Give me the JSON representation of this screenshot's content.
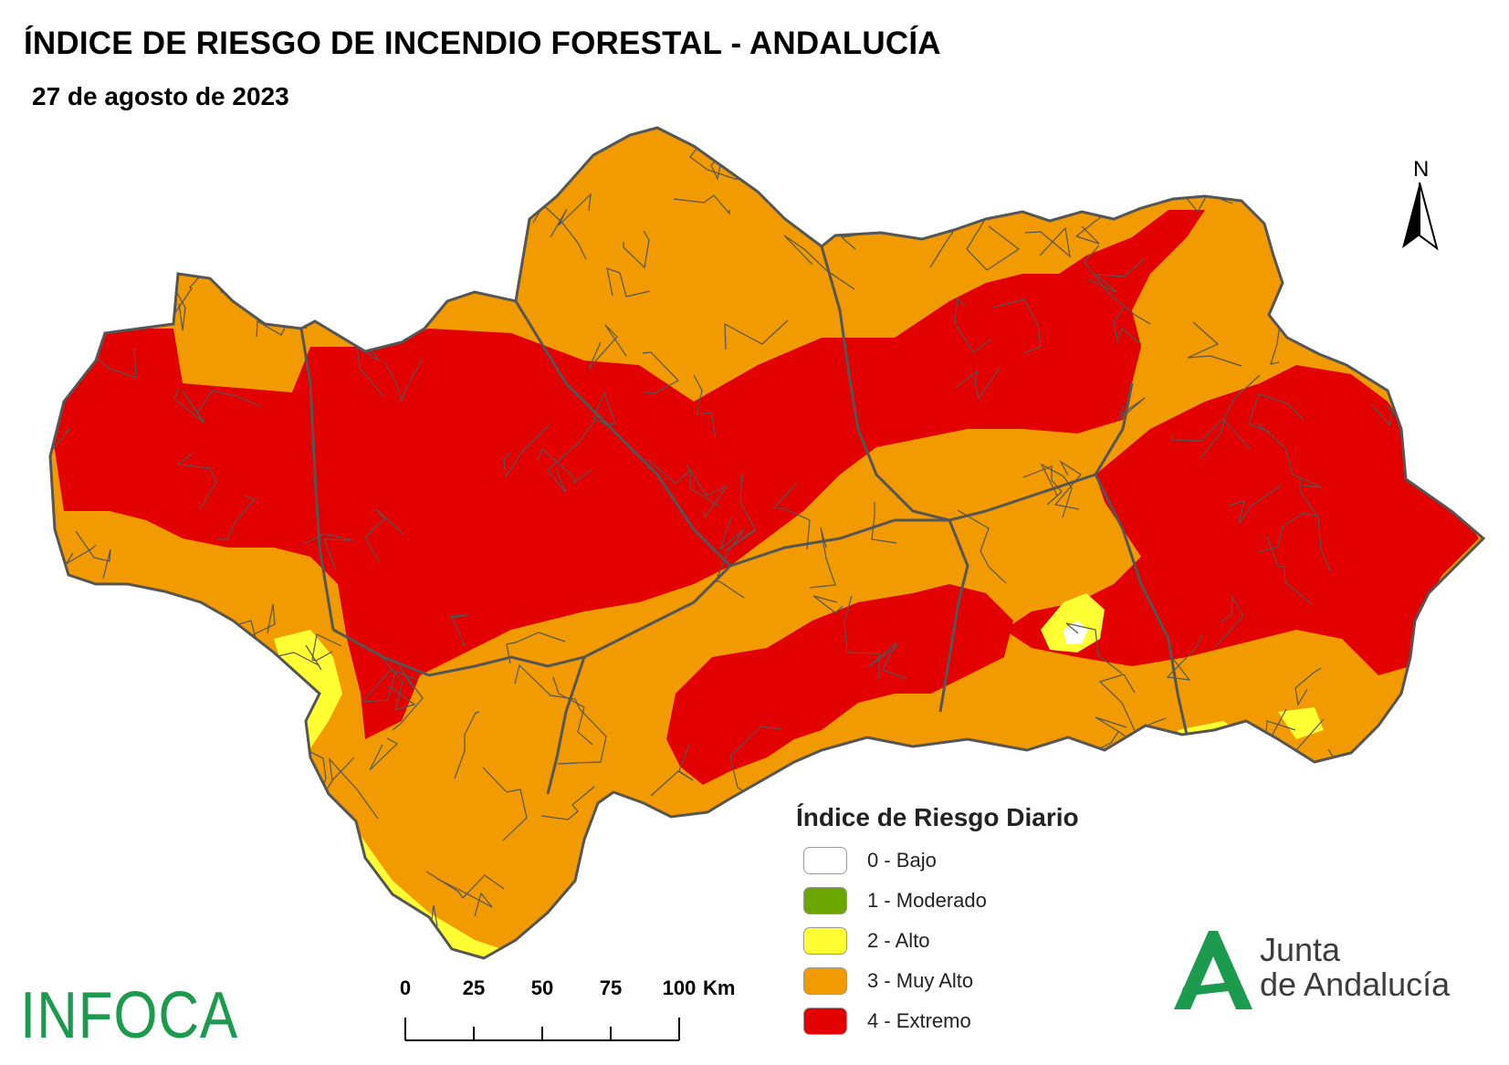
{
  "title": "ÍNDICE DE RIESGO DE INCENDIO FORESTAL - ANDALUCÍA",
  "subtitle": "27 de agosto de 2023",
  "north_label": "N",
  "legend": {
    "title": "Índice de Riesgo Diario",
    "items": [
      {
        "label": "0 - Bajo",
        "color": "#ffffff"
      },
      {
        "label": "1 - Moderado",
        "color": "#6aa500"
      },
      {
        "label": "2 - Alto",
        "color": "#ffff33"
      },
      {
        "label": "3 - Muy Alto",
        "color": "#f29b00"
      },
      {
        "label": "4 - Extremo",
        "color": "#e30000"
      }
    ]
  },
  "scale_bar": {
    "ticks": [
      "0",
      "25",
      "50",
      "75",
      "100"
    ],
    "unit": "Km"
  },
  "logos": {
    "infoca": "INFOCA",
    "junta_line1": "Junta",
    "junta_line2": "de Andalucía",
    "junta_color": "#1c9a4e"
  },
  "map_colors": {
    "border": "#555555"
  }
}
